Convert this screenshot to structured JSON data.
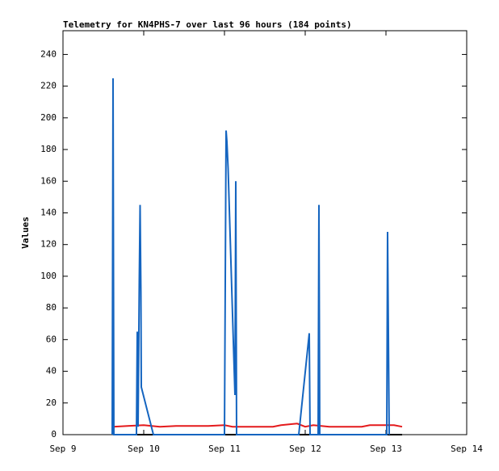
{
  "chart_data": {
    "type": "line",
    "title": "Telemetry for KN4PHS-7 over last 96 hours (184 points)",
    "y_label": "Values",
    "xlim": [
      9,
      14
    ],
    "xticks": [
      {
        "value": 9,
        "label": "Sep 9"
      },
      {
        "value": 10,
        "label": "Sep 10"
      },
      {
        "value": 11,
        "label": "Sep 11"
      },
      {
        "value": 12,
        "label": "Sep 12"
      },
      {
        "value": 13,
        "label": "Sep 13"
      },
      {
        "value": 14,
        "label": "Sep 14"
      }
    ],
    "ylim": [
      0,
      255
    ],
    "yticks": [
      0,
      20,
      40,
      60,
      80,
      100,
      120,
      140,
      160,
      180,
      200,
      220,
      240
    ],
    "series": [
      {
        "color": "#000000",
        "x": [
          9.62,
          10.5,
          11.5,
          12.5,
          13.2
        ],
        "values": [
          0,
          0,
          0,
          0,
          0
        ]
      },
      {
        "color": "#e41a1c",
        "x": [
          9.62,
          9.8,
          10.0,
          10.2,
          10.4,
          10.8,
          11.0,
          11.1,
          11.6,
          11.7,
          11.9,
          12.0,
          12.1,
          12.3,
          12.7,
          12.8,
          13.0,
          13.1,
          13.2
        ],
        "values": [
          5,
          5.5,
          6,
          5,
          5.5,
          5.5,
          6,
          5,
          5,
          6,
          7,
          5,
          6,
          5,
          5,
          6,
          6,
          6,
          5
        ]
      },
      {
        "color": "#1565c0",
        "x": [
          9.61,
          9.62,
          9.63,
          9.91,
          9.92,
          9.93,
          9.945,
          9.955,
          9.965,
          9.97,
          10.12,
          11.0,
          11.01,
          11.02,
          11.03,
          11.045,
          11.13,
          11.14,
          11.15,
          11.92,
          12.05,
          12.06,
          12.16,
          12.17,
          12.18,
          13.01,
          13.02,
          13.03,
          13.04
        ],
        "values": [
          0,
          225,
          0,
          0,
          65,
          5,
          97,
          145,
          90,
          30,
          0,
          0,
          97,
          192,
          185,
          168,
          25,
          160,
          0,
          0,
          64,
          0,
          0,
          145,
          0,
          0,
          128,
          64,
          0
        ]
      }
    ]
  }
}
